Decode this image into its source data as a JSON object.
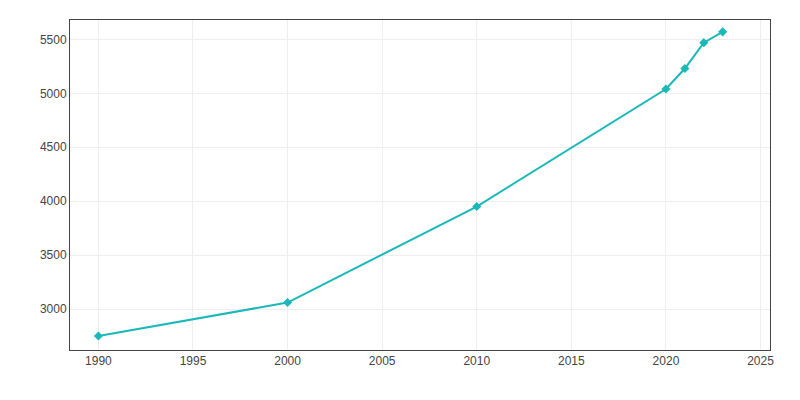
{
  "chart_data": {
    "type": "line",
    "x": [
      1990,
      2000,
      2010,
      2020,
      2021,
      2022,
      2023
    ],
    "values": [
      2750,
      3060,
      3950,
      5040,
      5230,
      5470,
      5570
    ],
    "color": "#1AB8B8",
    "marker": "diamond",
    "xlim": [
      1988.5,
      2025.5
    ],
    "ylim": [
      2620,
      5680
    ],
    "xticks": [
      1990,
      1995,
      2000,
      2005,
      2010,
      2015,
      2020,
      2025
    ],
    "yticks": [
      3000,
      3500,
      4000,
      4500,
      5000,
      5500
    ],
    "grid": true
  }
}
